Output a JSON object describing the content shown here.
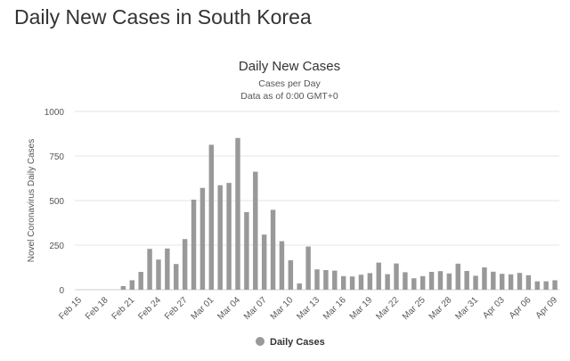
{
  "page": {
    "heading": "Daily New Cases in South Korea"
  },
  "chart_data": {
    "type": "bar",
    "title": "Daily New Cases",
    "subtitle_lines": [
      "Cases per Day",
      "Data as of 0:00 GMT+0"
    ],
    "ylabel": "Novel Coronavirus Daily Cases",
    "xlabel": "",
    "ylim": [
      0,
      1000
    ],
    "yticks": [
      0,
      250,
      500,
      750,
      1000
    ],
    "grid": true,
    "legend_position": "bottom-center",
    "bar_color": "#999999",
    "categories": [
      "Feb 15",
      "Feb 16",
      "Feb 17",
      "Feb 18",
      "Feb 19",
      "Feb 20",
      "Feb 21",
      "Feb 22",
      "Feb 23",
      "Feb 24",
      "Feb 25",
      "Feb 26",
      "Feb 27",
      "Feb 28",
      "Feb 29",
      "Mar 01",
      "Mar 02",
      "Mar 03",
      "Mar 04",
      "Mar 05",
      "Mar 06",
      "Mar 07",
      "Mar 08",
      "Mar 09",
      "Mar 10",
      "Mar 11",
      "Mar 12",
      "Mar 13",
      "Mar 14",
      "Mar 15",
      "Mar 16",
      "Mar 17",
      "Mar 18",
      "Mar 19",
      "Mar 20",
      "Mar 21",
      "Mar 22",
      "Mar 23",
      "Mar 24",
      "Mar 25",
      "Mar 26",
      "Mar 27",
      "Mar 28",
      "Mar 29",
      "Mar 30",
      "Mar 31",
      "Apr 01",
      "Apr 02",
      "Apr 03",
      "Apr 04",
      "Apr 05",
      "Apr 06",
      "Apr 07",
      "Apr 08",
      "Apr 09"
    ],
    "tick_labels": [
      "Feb 15",
      "Feb 18",
      "Feb 21",
      "Feb 24",
      "Feb 27",
      "Mar 01",
      "Mar 04",
      "Mar 07",
      "Mar 10",
      "Mar 13",
      "Mar 16",
      "Mar 19",
      "Mar 22",
      "Mar 25",
      "Mar 28",
      "Mar 31",
      "Apr 03",
      "Apr 06",
      "Apr 09"
    ],
    "series": [
      {
        "name": "Daily Cases",
        "values": [
          0,
          0,
          0,
          0,
          0,
          20,
          53,
          100,
          229,
          169,
          231,
          144,
          284,
          505,
          571,
          813,
          586,
          599,
          851,
          435,
          662,
          309,
          448,
          272,
          165,
          35,
          242,
          114,
          110,
          107,
          76,
          74,
          84,
          93,
          152,
          87,
          147,
          98,
          64,
          76,
          100,
          104,
          91,
          146,
          105,
          78,
          125,
          101,
          89,
          86,
          94,
          81,
          47,
          47,
          53
        ]
      }
    ]
  }
}
